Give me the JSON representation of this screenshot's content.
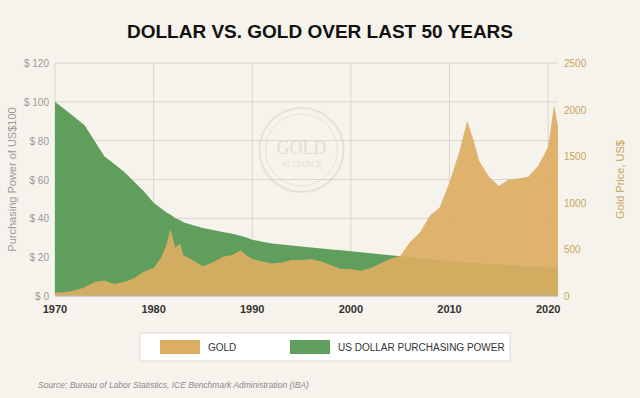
{
  "chart_data": {
    "type": "area",
    "title": "DOLLAR VS. GOLD OVER LAST 50 YEARS",
    "y_label": "Purchasing Power of US$100",
    "y2_label": "Gold Price, US$",
    "source": "Source: Bureau of Labor Statistics,  ICE Benchmark Administration (IBA)",
    "annotations": [
      "GOLD",
      "ALLIANCE"
    ],
    "x": [
      1970,
      1971,
      1972,
      1973,
      1974,
      1975,
      1976,
      1977,
      1978,
      1979,
      1980,
      1980.8,
      1981.3,
      1981.7,
      1982.2,
      1982.7,
      1983,
      1984,
      1985,
      1986,
      1987,
      1988,
      1988.8,
      1989.5,
      1990,
      1991,
      1992,
      1993,
      1994,
      1995,
      1996,
      1997,
      1998,
      1999,
      2000,
      2001,
      2002,
      2003,
      2004,
      2005,
      2006,
      2007,
      2008,
      2009,
      2010,
      2011,
      2011.8,
      2012.5,
      2013,
      2014,
      2015,
      2016,
      2017,
      2018,
      2019,
      2020,
      2020.6,
      2021
    ],
    "series": [
      {
        "name": "GOLD",
        "color": "#dcae62",
        "axis": "y2",
        "type": "area",
        "values": [
          35,
          40,
          60,
          95,
          150,
          165,
          130,
          150,
          190,
          260,
          300,
          420,
          550,
          720,
          520,
          560,
          440,
          380,
          320,
          360,
          420,
          440,
          490,
          430,
          400,
          370,
          350,
          360,
          385,
          385,
          395,
          370,
          330,
          290,
          290,
          270,
          300,
          350,
          400,
          430,
          580,
          680,
          860,
          950,
          1220,
          1550,
          1880,
          1650,
          1450,
          1280,
          1180,
          1250,
          1260,
          1280,
          1400,
          1600,
          2050,
          1820
        ]
      },
      {
        "name": "US DOLLAR PURCHASING POWER",
        "color": "#5f9e5d",
        "axis": "y",
        "type": "area",
        "values": [
          100,
          96,
          92,
          88,
          80,
          72,
          68,
          64,
          59,
          54,
          48,
          45,
          43,
          42,
          40,
          39,
          38,
          36.5,
          35,
          34,
          33,
          32,
          31,
          30,
          29,
          28,
          27,
          26.5,
          26,
          25.5,
          25,
          24.5,
          24,
          23.5,
          23,
          22.5,
          22,
          21.5,
          21,
          20.5,
          20,
          19.5,
          19,
          18.5,
          18,
          17.5,
          17.2,
          17,
          16.8,
          16.5,
          16.3,
          16,
          15.7,
          15.3,
          15,
          14.8,
          14.6,
          14.4
        ]
      }
    ],
    "xlim": [
      1970,
      2021
    ],
    "xticks": [
      1970,
      1980,
      1990,
      2000,
      2010,
      2020
    ],
    "ylim": [
      0,
      120
    ],
    "yticks": [
      {
        "value": 0,
        "label": "$ 0"
      },
      {
        "value": 20,
        "label": "$ 20"
      },
      {
        "value": 40,
        "label": "$ 40"
      },
      {
        "value": 60,
        "label": "$ 60"
      },
      {
        "value": 80,
        "label": "$ 80"
      },
      {
        "value": 100,
        "label": "$ 100"
      },
      {
        "value": 120,
        "label": "$ 120"
      }
    ],
    "y2lim": [
      0,
      2500
    ],
    "y2ticks": [
      0,
      500,
      1000,
      1500,
      2000,
      2500
    ],
    "grid": true,
    "legend": "bottom"
  }
}
